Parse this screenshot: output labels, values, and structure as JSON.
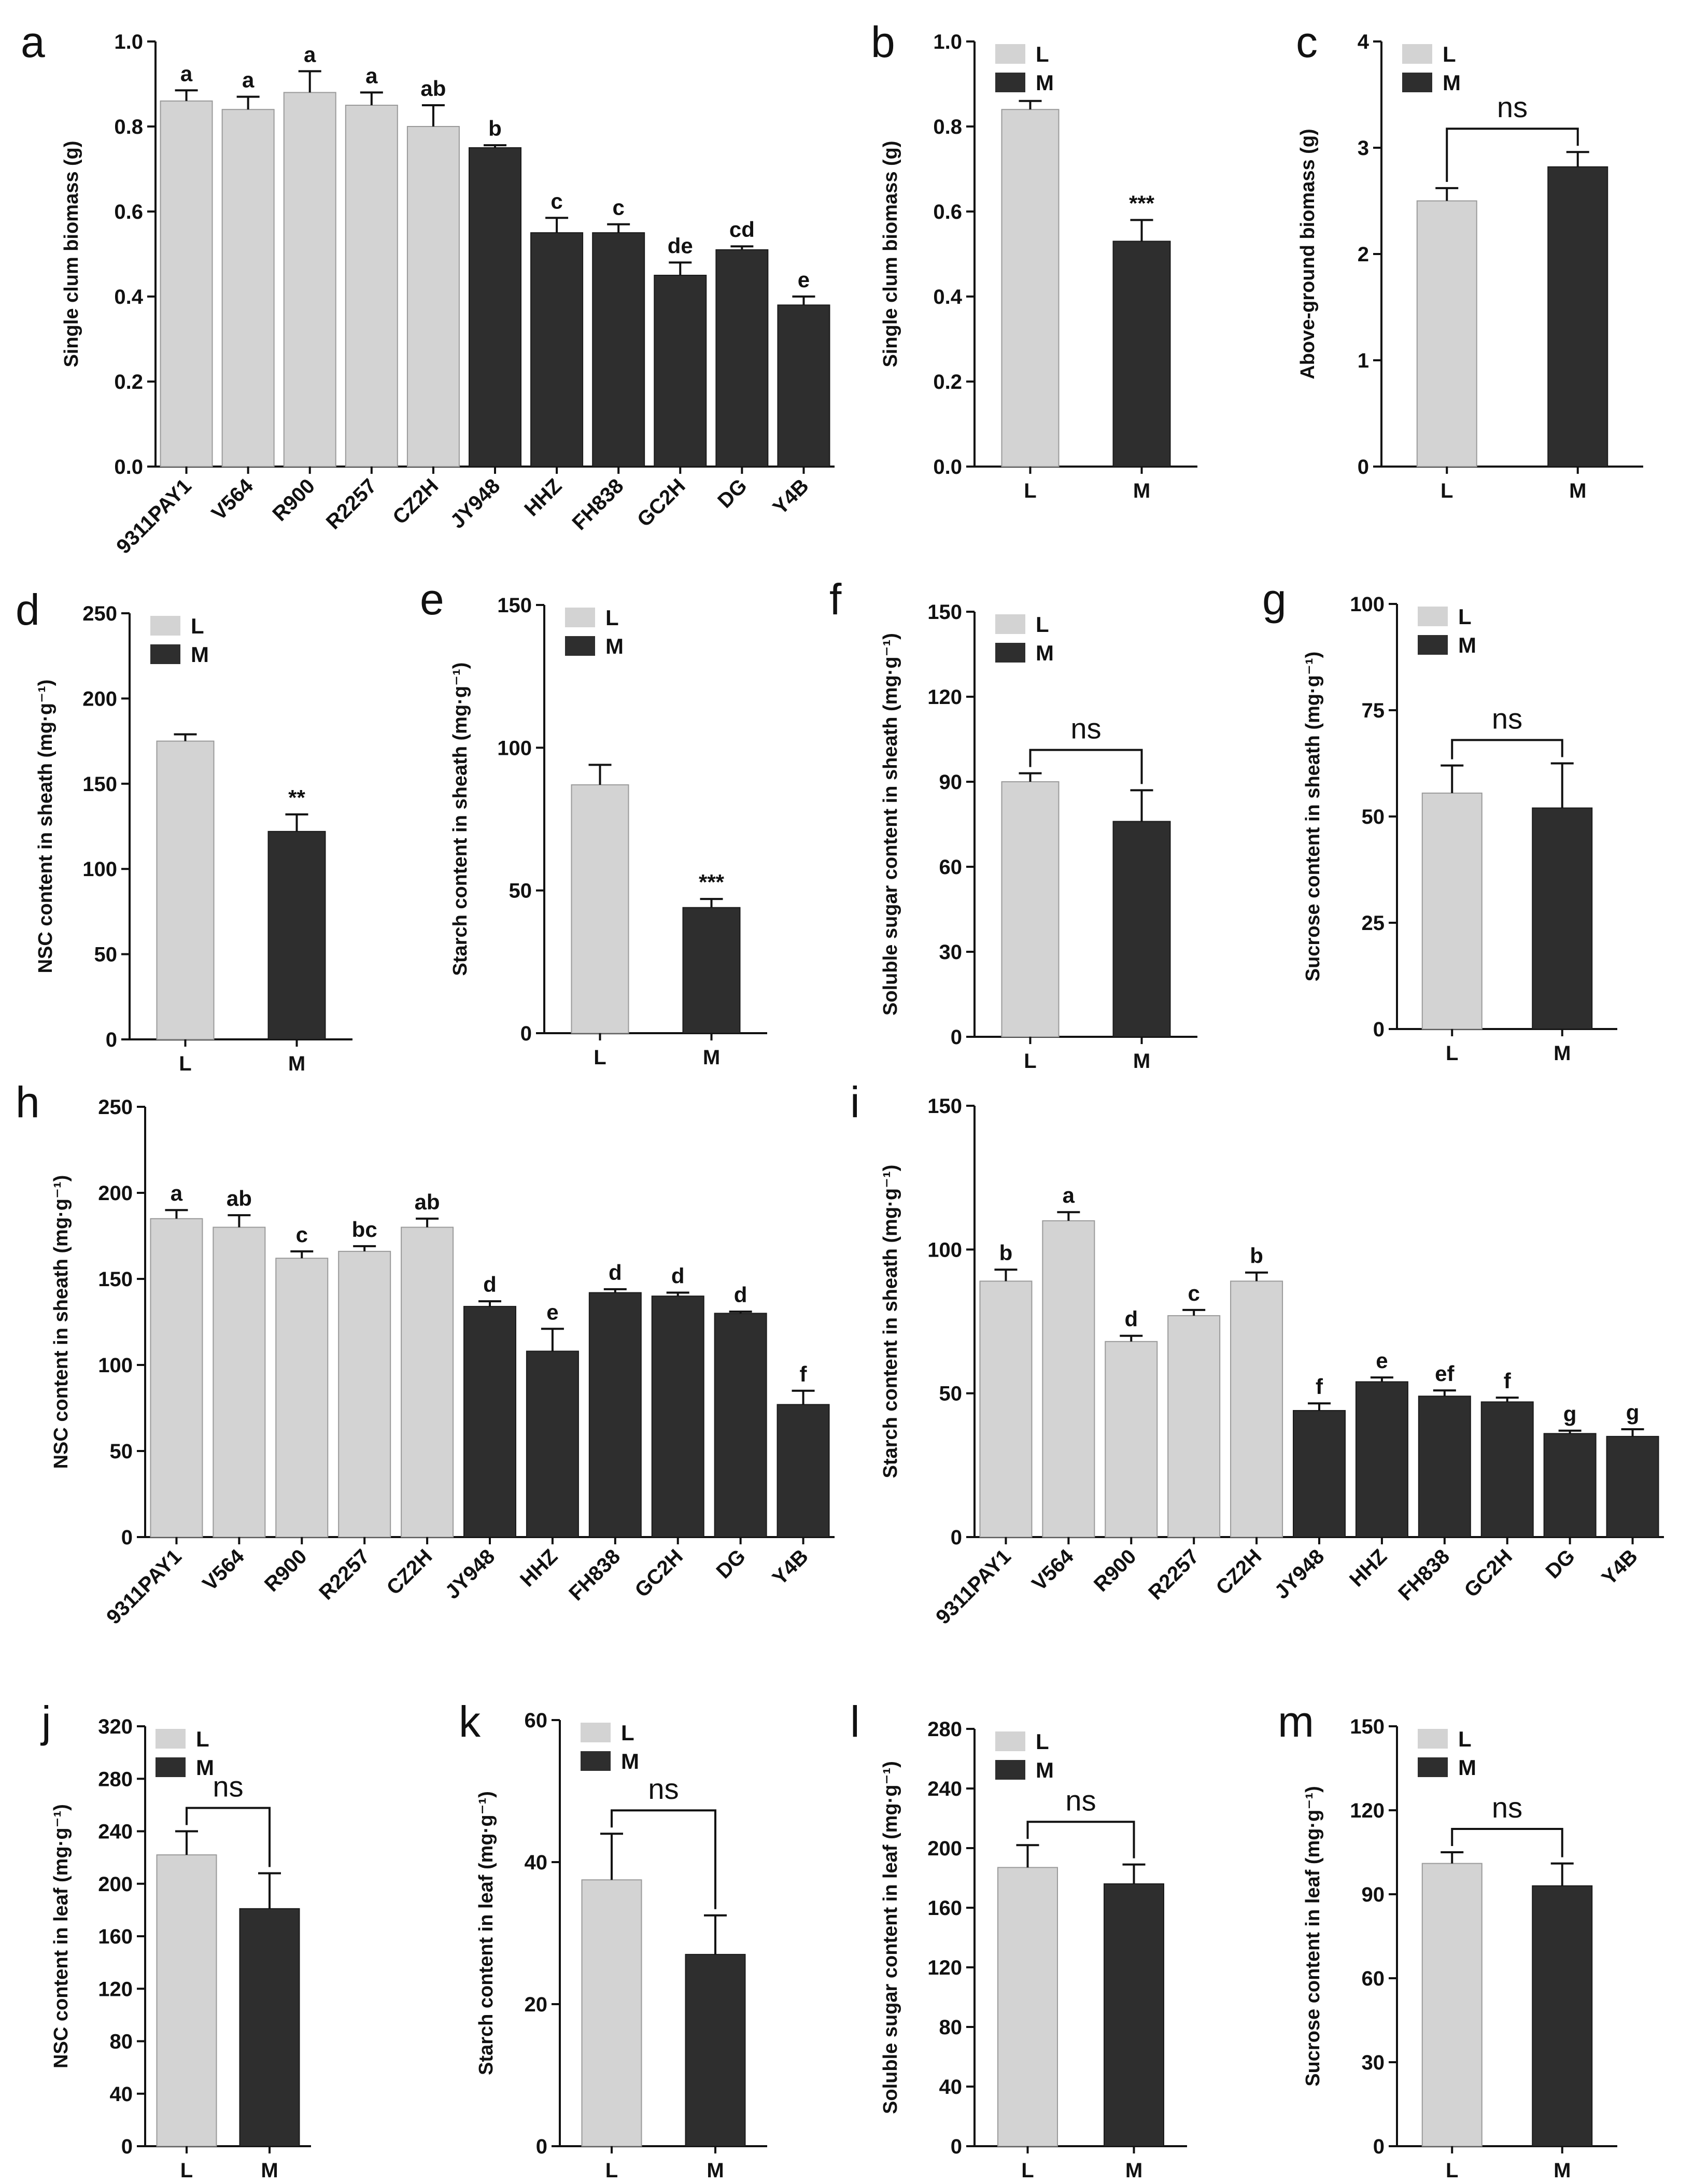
{
  "colors": {
    "L": "#d3d3d3",
    "M": "#2e2e2e",
    "axis": "#111111"
  },
  "chart_data": [
    {
      "panel": "a",
      "type": "bar",
      "ylabel": "Single clum biomass (g)",
      "ylim": [
        0,
        1.0
      ],
      "yticks": [
        "0.0",
        "0.2",
        "0.4",
        "0.6",
        "0.8",
        "1.0"
      ],
      "categories": [
        "9311PAY1",
        "V564",
        "R900",
        "R2257",
        "CZ2H",
        "JY948",
        "HHZ",
        "FH838",
        "GC2H",
        "DG",
        "Y4B"
      ],
      "groups": [
        "L",
        "L",
        "L",
        "L",
        "L",
        "M",
        "M",
        "M",
        "M",
        "M",
        "M"
      ],
      "values": [
        0.86,
        0.84,
        0.88,
        0.85,
        0.8,
        0.75,
        0.55,
        0.55,
        0.45,
        0.51,
        0.38
      ],
      "errors": [
        0.025,
        0.03,
        0.05,
        0.03,
        0.05,
        0.006,
        0.035,
        0.02,
        0.03,
        0.008,
        0.02
      ],
      "letters": [
        "a",
        "a",
        "a",
        "a",
        "ab",
        "b",
        "c",
        "c",
        "de",
        "cd",
        "e"
      ]
    },
    {
      "panel": "b",
      "type": "bar",
      "ylabel": "Single clum biomass (g)",
      "ylim": [
        0,
        1.0
      ],
      "yticks": [
        "0.0",
        "0.2",
        "0.4",
        "0.6",
        "0.8",
        "1.0"
      ],
      "categories": [
        "L",
        "M"
      ],
      "groups": [
        "L",
        "M"
      ],
      "values": [
        0.84,
        0.53
      ],
      "errors": [
        0.02,
        0.05
      ],
      "letters": [
        "",
        "***"
      ],
      "legend": [
        "L",
        "M"
      ]
    },
    {
      "panel": "c",
      "type": "bar",
      "ylabel": "Above-ground biomass (g)",
      "ylim": [
        0,
        4
      ],
      "yticks": [
        "0",
        "1",
        "2",
        "3",
        "4"
      ],
      "categories": [
        "L",
        "M"
      ],
      "groups": [
        "L",
        "M"
      ],
      "values": [
        2.5,
        2.82
      ],
      "errors": [
        0.12,
        0.14
      ],
      "letters": [
        "",
        ""
      ],
      "bracket": "ns",
      "legend": [
        "L",
        "M"
      ]
    },
    {
      "panel": "d",
      "type": "bar",
      "ylabel": "NSC content in sheath (mg·g⁻¹)",
      "ylim": [
        0,
        250
      ],
      "yticks": [
        "0",
        "50",
        "100",
        "150",
        "200",
        "250"
      ],
      "categories": [
        "L",
        "M"
      ],
      "groups": [
        "L",
        "M"
      ],
      "values": [
        175,
        122
      ],
      "errors": [
        4,
        10
      ],
      "letters": [
        "",
        "**"
      ],
      "legend": [
        "L",
        "M"
      ]
    },
    {
      "panel": "e",
      "type": "bar",
      "ylabel": "Starch content in sheath (mg·g⁻¹)",
      "ylim": [
        0,
        150
      ],
      "yticks": [
        "0",
        "50",
        "100",
        "150"
      ],
      "categories": [
        "L",
        "M"
      ],
      "groups": [
        "L",
        "M"
      ],
      "values": [
        87,
        44
      ],
      "errors": [
        7,
        3
      ],
      "letters": [
        "",
        "***"
      ],
      "legend": [
        "L",
        "M"
      ]
    },
    {
      "panel": "f",
      "type": "bar",
      "ylabel": "Soluble sugar content in sheath (mg·g⁻¹)",
      "ylim": [
        0,
        150
      ],
      "yticks": [
        "0",
        "30",
        "60",
        "90",
        "120",
        "150"
      ],
      "categories": [
        "L",
        "M"
      ],
      "groups": [
        "L",
        "M"
      ],
      "values": [
        90,
        76
      ],
      "errors": [
        3,
        11
      ],
      "letters": [
        "",
        ""
      ],
      "bracket": "ns",
      "legend": [
        "L",
        "M"
      ]
    },
    {
      "panel": "g",
      "type": "bar",
      "ylabel": "Sucrose content in sheath (mg·g⁻¹)",
      "ylim": [
        0,
        100
      ],
      "yticks": [
        "0",
        "25",
        "50",
        "75",
        "100"
      ],
      "categories": [
        "L",
        "M"
      ],
      "groups": [
        "L",
        "M"
      ],
      "values": [
        55.5,
        52
      ],
      "errors": [
        6.5,
        10.5
      ],
      "letters": [
        "",
        ""
      ],
      "bracket": "ns",
      "legend": [
        "L",
        "M"
      ]
    },
    {
      "panel": "h",
      "type": "bar",
      "ylabel": "NSC content in sheath (mg·g⁻¹)",
      "ylim": [
        0,
        250
      ],
      "yticks": [
        "0",
        "50",
        "100",
        "150",
        "200",
        "250"
      ],
      "categories": [
        "9311PAY1",
        "V564",
        "R900",
        "R2257",
        "CZ2H",
        "JY948",
        "HHZ",
        "FH838",
        "GC2H",
        "DG",
        "Y4B"
      ],
      "groups": [
        "L",
        "L",
        "L",
        "L",
        "L",
        "M",
        "M",
        "M",
        "M",
        "M",
        "M"
      ],
      "values": [
        185,
        180,
        162,
        166,
        180,
        134,
        108,
        142,
        140,
        130,
        77
      ],
      "errors": [
        5,
        7,
        4,
        3,
        5,
        3,
        13,
        2,
        2,
        1,
        8
      ],
      "letters": [
        "a",
        "ab",
        "c",
        "bc",
        "ab",
        "d",
        "e",
        "d",
        "d",
        "d",
        "f"
      ]
    },
    {
      "panel": "i",
      "type": "bar",
      "ylabel": "Starch content in sheath (mg·g⁻¹)",
      "ylim": [
        0,
        150
      ],
      "yticks": [
        "0",
        "50",
        "100",
        "150"
      ],
      "categories": [
        "9311PAY1",
        "V564",
        "R900",
        "R2257",
        "CZ2H",
        "JY948",
        "HHZ",
        "FH838",
        "GC2H",
        "DG",
        "Y4B"
      ],
      "groups": [
        "L",
        "L",
        "L",
        "L",
        "L",
        "M",
        "M",
        "M",
        "M",
        "M",
        "M"
      ],
      "values": [
        89,
        110,
        68,
        77,
        89,
        44,
        54,
        49,
        47,
        36,
        35
      ],
      "errors": [
        4,
        3,
        2,
        2,
        3,
        2.5,
        1.5,
        2,
        1.5,
        1,
        2.5
      ],
      "letters": [
        "b",
        "a",
        "d",
        "c",
        "b",
        "f",
        "e",
        "ef",
        "f",
        "g",
        "g"
      ]
    },
    {
      "panel": "j",
      "type": "bar",
      "ylabel": "NSC content in leaf (mg·g⁻¹)",
      "ylim": [
        0,
        320
      ],
      "yticks": [
        "0",
        "40",
        "80",
        "120",
        "160",
        "200",
        "240",
        "280",
        "320"
      ],
      "categories": [
        "L",
        "M"
      ],
      "groups": [
        "L",
        "M"
      ],
      "values": [
        222,
        181
      ],
      "errors": [
        18,
        27
      ],
      "letters": [
        "",
        ""
      ],
      "bracket": "ns",
      "legend": [
        "L",
        "M"
      ]
    },
    {
      "panel": "k",
      "type": "bar",
      "ylabel": "Starch content in leaf (mg·g⁻¹)",
      "ylim": [
        0,
        60
      ],
      "yticks": [
        "0",
        "20",
        "40",
        "60"
      ],
      "categories": [
        "L",
        "M"
      ],
      "groups": [
        "L",
        "M"
      ],
      "values": [
        37.5,
        27
      ],
      "errors": [
        6.5,
        5.5
      ],
      "letters": [
        "",
        ""
      ],
      "bracket": "ns",
      "legend": [
        "L",
        "M"
      ]
    },
    {
      "panel": "l",
      "type": "bar",
      "ylabel": "Soluble sugar content in leaf (mg·g⁻¹)",
      "ylim": [
        0,
        280
      ],
      "yticks": [
        "0",
        "40",
        "80",
        "120",
        "160",
        "200",
        "240",
        "280"
      ],
      "categories": [
        "L",
        "M"
      ],
      "groups": [
        "L",
        "M"
      ],
      "values": [
        187,
        176
      ],
      "errors": [
        15,
        13
      ],
      "letters": [
        "",
        ""
      ],
      "bracket": "ns",
      "legend": [
        "L",
        "M"
      ]
    },
    {
      "panel": "m",
      "type": "bar",
      "ylabel": "Sucrose content in leaf (mg·g⁻¹)",
      "ylim": [
        0,
        150
      ],
      "yticks": [
        "0",
        "30",
        "60",
        "90",
        "120",
        "150"
      ],
      "categories": [
        "L",
        "M"
      ],
      "groups": [
        "L",
        "M"
      ],
      "values": [
        101,
        93
      ],
      "errors": [
        4,
        8
      ],
      "letters": [
        "",
        ""
      ],
      "bracket": "ns",
      "legend": [
        "L",
        "M"
      ]
    }
  ]
}
